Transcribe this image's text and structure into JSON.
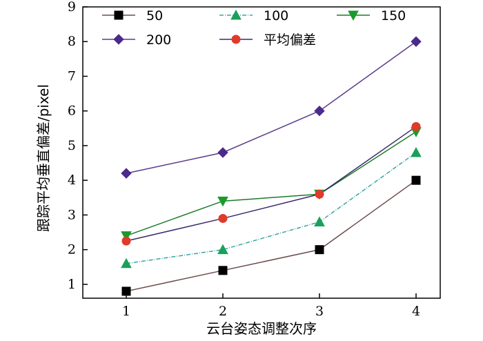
{
  "chart_data": {
    "type": "line",
    "title": "",
    "xlabel": "云台姿态调整次序",
    "ylabel": "跟踪平均垂直偏差/pixel",
    "x": [
      1,
      2,
      3,
      4
    ],
    "x_ticks": [
      "1",
      "2",
      "3",
      "4"
    ],
    "xlim": [
      0.55,
      4.25
    ],
    "ylim": [
      0.6,
      9
    ],
    "y_ticks": [
      "1",
      "2",
      "3",
      "4",
      "5",
      "6",
      "7",
      "8",
      "9"
    ],
    "grid": false,
    "legend_position": "top",
    "series": [
      {
        "name": "50",
        "values": [
          0.8,
          1.4,
          2.0,
          4.0
        ],
        "color": "#6b4a4a",
        "marker": "square",
        "marker_color": "#000000"
      },
      {
        "name": "100",
        "values": [
          1.6,
          2.0,
          2.8,
          4.8
        ],
        "color": "#3aa3a3",
        "marker": "triangle-up",
        "marker_color": "#1aa05a",
        "dash": true
      },
      {
        "name": "150",
        "values": [
          2.4,
          3.4,
          3.6,
          5.4
        ],
        "color": "#1a7a2a",
        "marker": "triangle-down",
        "marker_color": "#1a9a2a"
      },
      {
        "name": "200",
        "values": [
          4.2,
          4.8,
          6.0,
          8.0
        ],
        "color": "#5a3a8a",
        "marker": "diamond",
        "marker_color": "#4a2a8a"
      },
      {
        "name": "平均偏差",
        "values": [
          2.25,
          2.9,
          3.6,
          5.55
        ],
        "color": "#3a2a6a",
        "marker": "circle",
        "marker_color": "#e03a2a"
      }
    ]
  }
}
